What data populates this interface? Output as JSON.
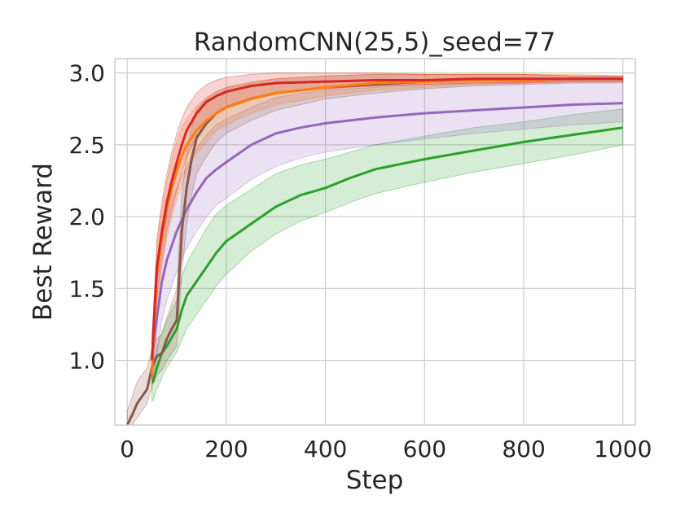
{
  "chart_data": {
    "type": "line",
    "title": "RandomCNN(25,5)_seed=77",
    "xlabel": "Step",
    "ylabel": "Best Reward",
    "xlim": [
      -25,
      1025
    ],
    "ylim": [
      0.55,
      3.1
    ],
    "xticks": [
      0,
      200,
      400,
      600,
      800,
      1000
    ],
    "yticks": [
      1.0,
      1.5,
      2.0,
      2.5,
      3.0
    ],
    "xtick_labels": [
      "0",
      "200",
      "400",
      "600",
      "800",
      "1000"
    ],
    "ytick_labels": [
      "1.0",
      "1.5",
      "2.0",
      "2.5",
      "3.0"
    ],
    "grid": true,
    "legend": "none",
    "series": [
      {
        "color": "#2ca02c",
        "x": [
          50,
          52,
          60,
          70,
          80,
          100,
          110,
          120,
          140,
          160,
          180,
          200,
          250,
          300,
          350,
          400,
          450,
          500,
          600,
          700,
          800,
          900,
          1000
        ],
        "y": [
          0.85,
          0.85,
          0.95,
          1.05,
          1.1,
          1.22,
          1.35,
          1.45,
          1.55,
          1.65,
          1.75,
          1.83,
          1.95,
          2.07,
          2.15,
          2.2,
          2.27,
          2.33,
          2.4,
          2.46,
          2.52,
          2.57,
          2.62
        ],
        "lower": [
          0.72,
          0.72,
          0.8,
          0.88,
          0.95,
          1.06,
          1.14,
          1.22,
          1.32,
          1.42,
          1.52,
          1.6,
          1.76,
          1.88,
          1.97,
          2.03,
          2.1,
          2.16,
          2.24,
          2.31,
          2.37,
          2.43,
          2.5
        ],
        "upper": [
          0.98,
          0.98,
          1.08,
          1.2,
          1.28,
          1.42,
          1.58,
          1.68,
          1.8,
          1.92,
          2.02,
          2.08,
          2.19,
          2.3,
          2.36,
          2.4,
          2.45,
          2.5,
          2.56,
          2.62,
          2.66,
          2.71,
          2.75
        ]
      },
      {
        "color": "#9467bd",
        "x": [
          50,
          60,
          70,
          80,
          90,
          100,
          120,
          140,
          160,
          180,
          200,
          250,
          300,
          350,
          400,
          500,
          600,
          700,
          800,
          900,
          1000
        ],
        "y": [
          1.0,
          1.3,
          1.55,
          1.7,
          1.8,
          1.9,
          2.05,
          2.17,
          2.27,
          2.33,
          2.38,
          2.5,
          2.58,
          2.62,
          2.65,
          2.69,
          2.72,
          2.74,
          2.76,
          2.78,
          2.79
        ],
        "lower": [
          0.82,
          1.05,
          1.28,
          1.42,
          1.52,
          1.62,
          1.78,
          1.9,
          2.0,
          2.08,
          2.13,
          2.26,
          2.35,
          2.41,
          2.45,
          2.5,
          2.54,
          2.58,
          2.61,
          2.64,
          2.66
        ],
        "upper": [
          1.2,
          1.55,
          1.82,
          2.0,
          2.1,
          2.2,
          2.35,
          2.47,
          2.57,
          2.64,
          2.68,
          2.76,
          2.83,
          2.86,
          2.88,
          2.9,
          2.92,
          2.93,
          2.94,
          2.95,
          2.96
        ]
      },
      {
        "color": "#8c564b",
        "x": [
          0,
          10,
          20,
          30,
          40,
          50,
          60,
          70,
          80,
          90,
          100,
          110,
          120,
          130,
          140,
          160,
          180,
          200,
          250,
          300,
          400,
          500,
          600,
          700,
          800,
          900,
          1000
        ],
        "y": [
          0.55,
          0.62,
          0.7,
          0.75,
          0.8,
          0.95,
          1.03,
          1.05,
          1.15,
          1.22,
          1.28,
          1.9,
          2.2,
          2.4,
          2.55,
          2.65,
          2.72,
          2.76,
          2.82,
          2.86,
          2.9,
          2.92,
          2.94,
          2.95,
          2.95,
          2.96,
          2.96
        ],
        "lower": [
          0.48,
          0.54,
          0.6,
          0.65,
          0.7,
          0.82,
          0.9,
          0.93,
          1.0,
          1.05,
          1.1,
          1.6,
          1.95,
          2.15,
          2.3,
          2.42,
          2.52,
          2.58,
          2.67,
          2.74,
          2.82,
          2.86,
          2.89,
          2.91,
          2.92,
          2.93,
          2.93
        ],
        "upper": [
          0.65,
          0.75,
          0.85,
          0.9,
          0.95,
          1.08,
          1.15,
          1.18,
          1.3,
          1.4,
          1.5,
          2.15,
          2.45,
          2.62,
          2.75,
          2.82,
          2.87,
          2.9,
          2.93,
          2.96,
          2.98,
          2.99,
          2.99,
          2.99,
          2.99,
          2.98,
          2.98
        ]
      },
      {
        "color": "#ff7f0e",
        "x": [
          50,
          55,
          60,
          70,
          80,
          90,
          100,
          110,
          120,
          140,
          160,
          180,
          200,
          250,
          300,
          400,
          500,
          600,
          700,
          800,
          900,
          1000
        ],
        "y": [
          0.9,
          1.3,
          1.6,
          1.85,
          2.05,
          2.2,
          2.32,
          2.42,
          2.5,
          2.6,
          2.67,
          2.72,
          2.76,
          2.82,
          2.86,
          2.9,
          2.93,
          2.94,
          2.95,
          2.95,
          2.96,
          2.96
        ],
        "lower": [
          0.8,
          1.15,
          1.4,
          1.65,
          1.85,
          2.0,
          2.12,
          2.22,
          2.32,
          2.44,
          2.52,
          2.6,
          2.64,
          2.72,
          2.78,
          2.84,
          2.88,
          2.9,
          2.92,
          2.93,
          2.94,
          2.94
        ],
        "upper": [
          1.0,
          1.45,
          1.8,
          2.05,
          2.25,
          2.4,
          2.52,
          2.62,
          2.68,
          2.77,
          2.83,
          2.87,
          2.9,
          2.94,
          2.96,
          2.98,
          2.99,
          2.99,
          2.99,
          2.99,
          2.99,
          2.98
        ]
      },
      {
        "color": "#d62728",
        "x": [
          50,
          55,
          60,
          70,
          80,
          90,
          100,
          110,
          120,
          140,
          160,
          180,
          200,
          250,
          300,
          400,
          500,
          600,
          700,
          800,
          900,
          1000
        ],
        "y": [
          1.0,
          1.35,
          1.65,
          1.9,
          2.1,
          2.25,
          2.38,
          2.5,
          2.6,
          2.72,
          2.8,
          2.84,
          2.87,
          2.91,
          2.93,
          2.94,
          2.95,
          2.95,
          2.96,
          2.96,
          2.96,
          2.96
        ],
        "lower": [
          0.85,
          1.2,
          1.45,
          1.7,
          1.9,
          2.05,
          2.18,
          2.3,
          2.42,
          2.56,
          2.66,
          2.73,
          2.77,
          2.83,
          2.86,
          2.89,
          2.91,
          2.92,
          2.93,
          2.93,
          2.94,
          2.94
        ],
        "upper": [
          1.15,
          1.5,
          1.85,
          2.1,
          2.3,
          2.45,
          2.58,
          2.68,
          2.76,
          2.86,
          2.92,
          2.95,
          2.97,
          2.99,
          3.0,
          3.0,
          3.0,
          2.99,
          2.99,
          2.99,
          2.98,
          2.98
        ]
      }
    ]
  }
}
